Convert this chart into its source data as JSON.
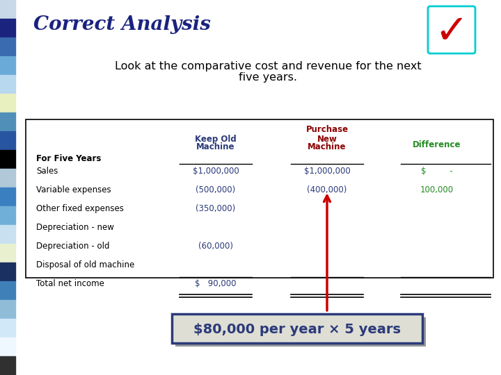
{
  "title": "Correct Analysis",
  "subtitle_line1": "Look at the comparative cost and revenue for the next",
  "subtitle_line2": "five years.",
  "title_color": "#1a237e",
  "subtitle_color": "#000000",
  "bg_color": "#ffffff",
  "sidebar_colors": [
    "#c8d8e8",
    "#1a237e",
    "#3a6ab0",
    "#6aaad8",
    "#b8d8f0",
    "#e8f0c0",
    "#5090b8",
    "#2855a0",
    "#000000",
    "#b0c8d8",
    "#3a80c0",
    "#70b0d8",
    "#c8e0f0",
    "#e8f0d0",
    "#1a3060",
    "#4080b8",
    "#90bcd8",
    "#d0e8f8",
    "#f0f8ff",
    "#303030"
  ],
  "table": {
    "header_color_keep": "#2b3a7a",
    "header_color_purchase": "#8b0000",
    "header_color_diff": "#228B22",
    "keep_col_color": "#2b3a7a",
    "new_col_color": "#2b3a7a",
    "diff_col_color": "#228B22"
  },
  "annotation_text": "$80,000 per year × 5 years",
  "annotation_bg": "#deded4",
  "annotation_border": "#2b3a7a",
  "arrow_color": "#cc0000",
  "checkmark_color": "#cc0000",
  "checkmark_box_color": "#00ced1"
}
